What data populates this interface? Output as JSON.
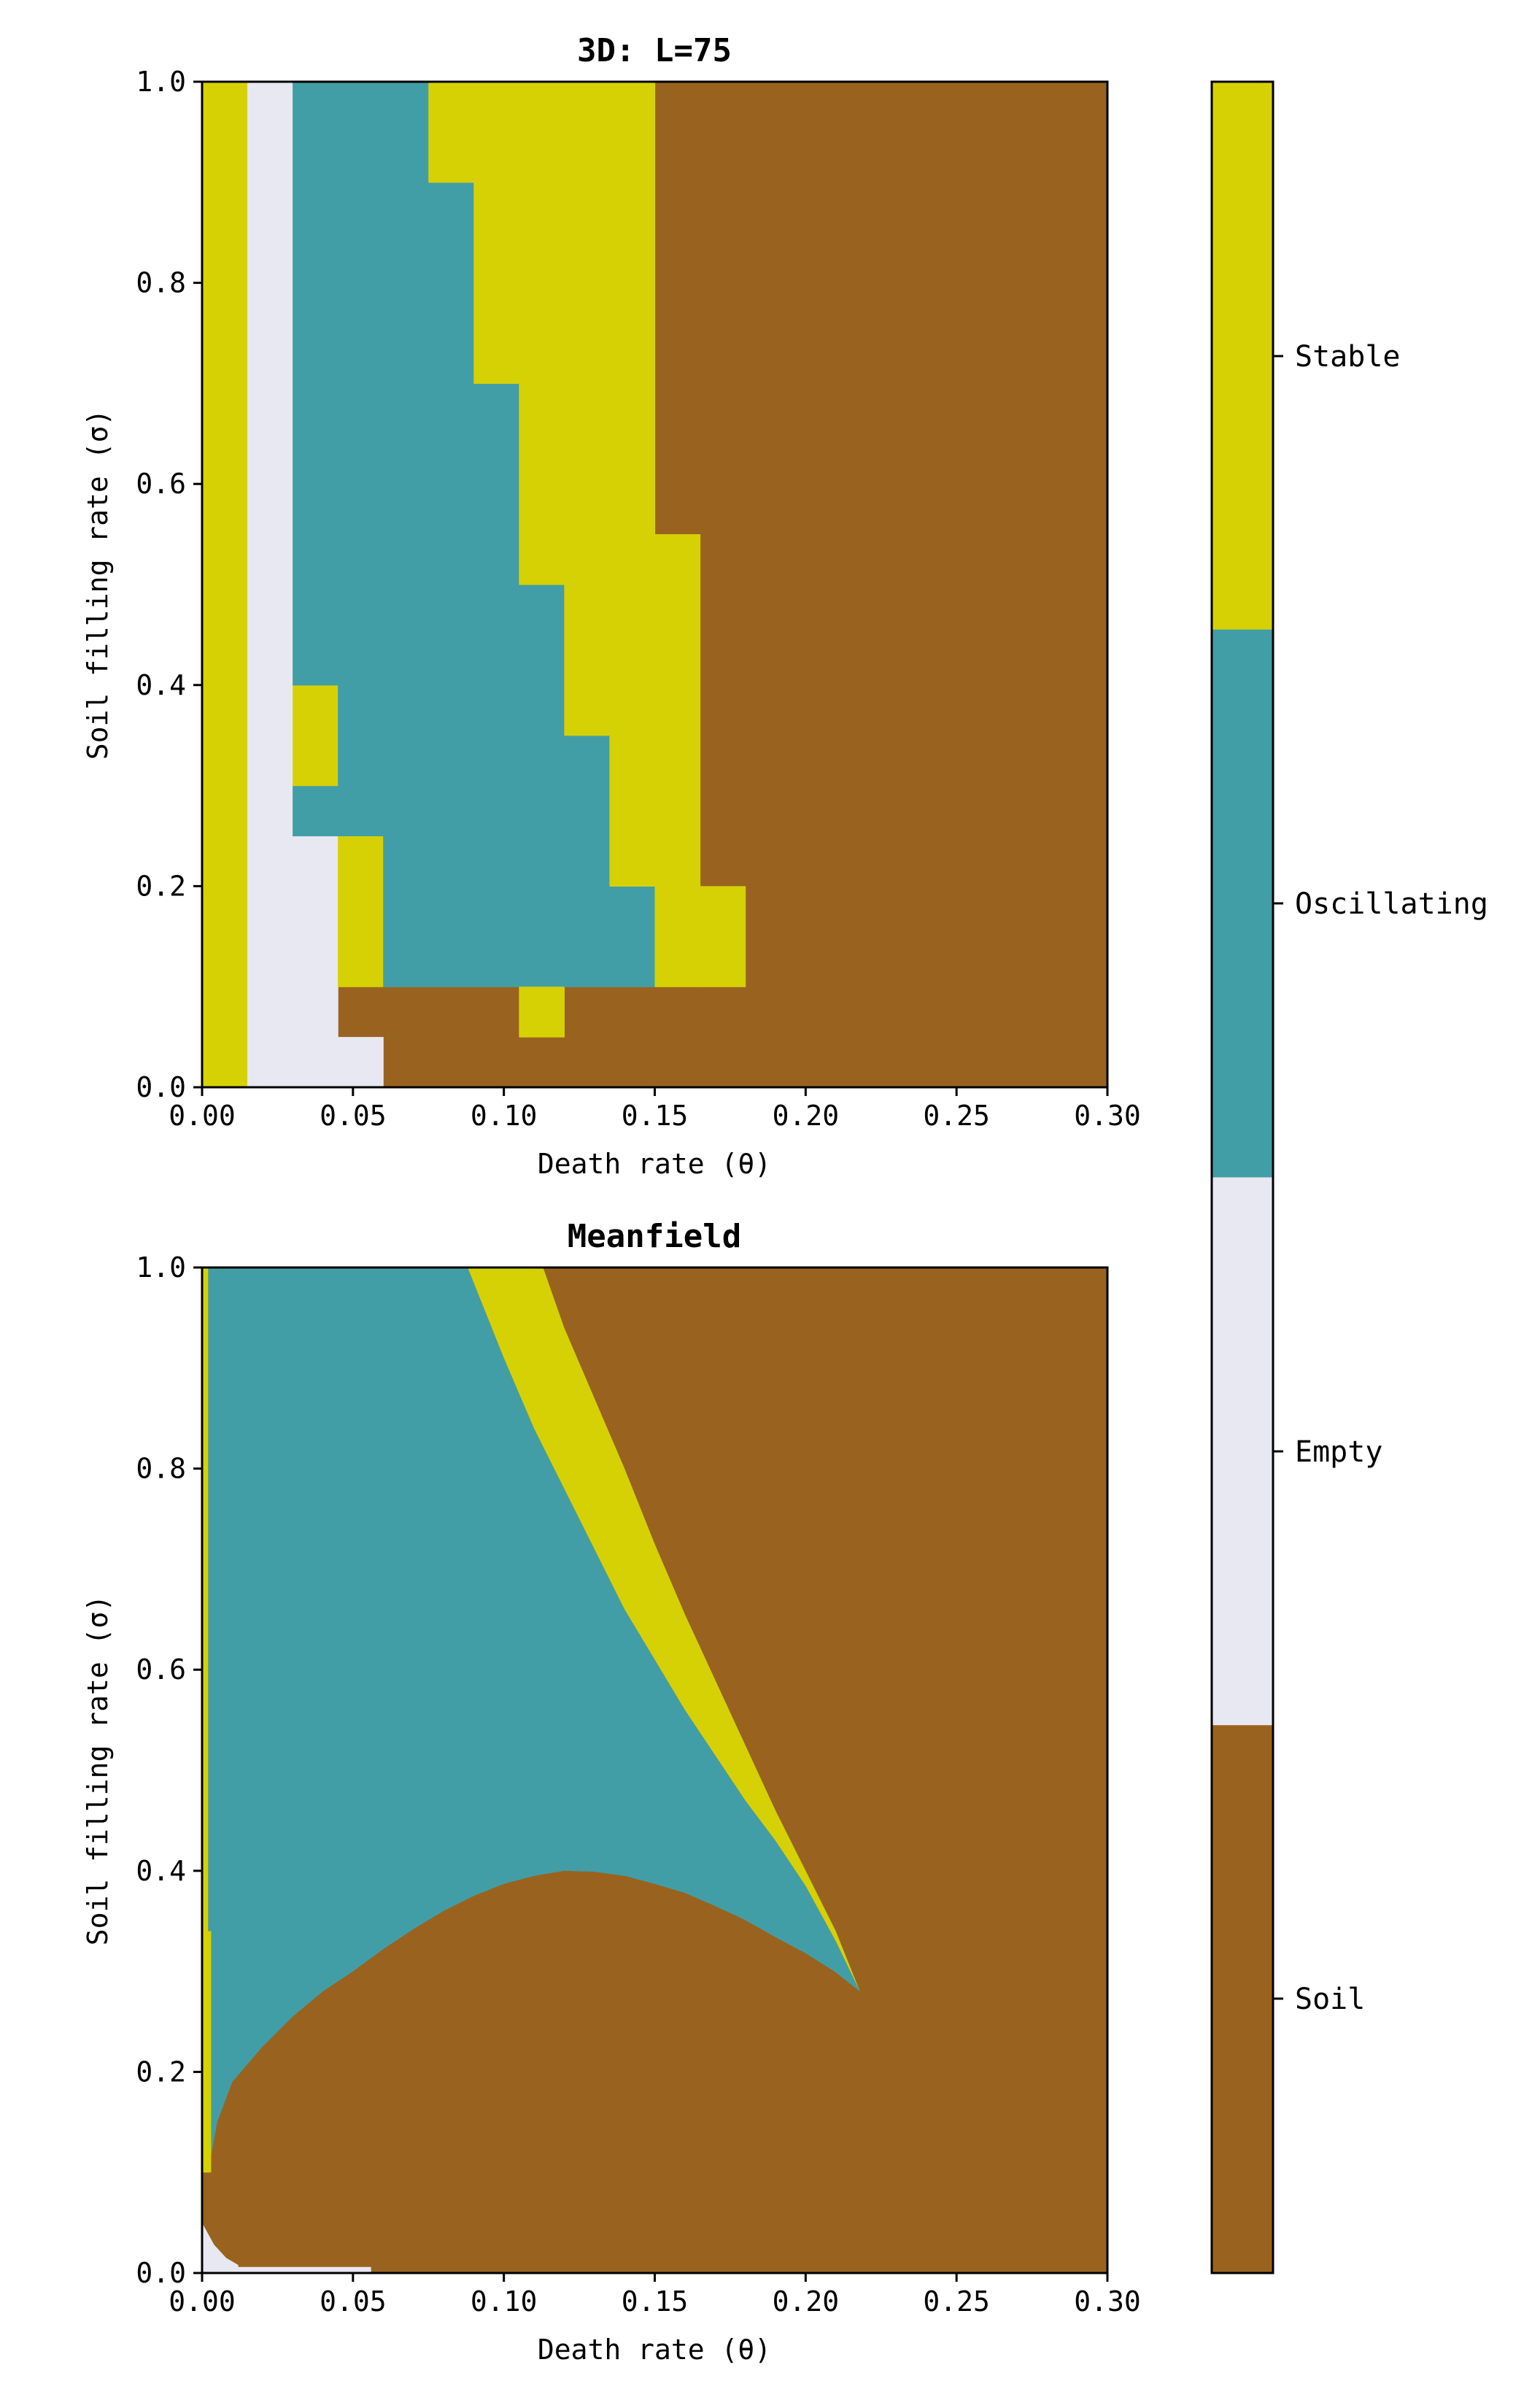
{
  "colors": {
    "soil": "#99631f",
    "empty": "#e8e8f2",
    "oscillating": "#429ea6",
    "stable": "#d6d105"
  },
  "colorbar": {
    "labels": [
      "Soil",
      "Empty",
      "Oscillating",
      "Stable"
    ]
  },
  "chart_data": [
    {
      "type": "heatmap",
      "title": "3D: L=75",
      "xlabel": "Death rate (θ)",
      "ylabel": "Soil filling rate (σ)",
      "xlim": [
        0.0,
        0.3
      ],
      "ylim": [
        0.0,
        1.0
      ],
      "xticks": [
        "0.00",
        "0.05",
        "0.10",
        "0.15",
        "0.20",
        "0.25",
        "0.30"
      ],
      "yticks": [
        "0.0",
        "0.2",
        "0.4",
        "0.6",
        "0.8",
        "1.0"
      ],
      "cell_width": 0.015,
      "cell_height": 0.05,
      "legend": [
        "Soil",
        "Empty",
        "Oscillating",
        "Stable"
      ],
      "regions": [
        {
          "state": "Soil",
          "theta_range": [
            0.0,
            0.3
          ],
          "sigma_range": [
            0.0,
            1.0
          ]
        },
        {
          "state": "Stable",
          "theta_range": [
            0.0,
            0.015
          ],
          "sigma_range": [
            0.0,
            1.0
          ]
        },
        {
          "state": "Empty",
          "theta_range": [
            0.015,
            0.03
          ],
          "sigma_range": [
            0.0,
            1.0
          ]
        },
        {
          "state": "Empty",
          "theta_range": [
            0.03,
            0.045
          ],
          "sigma_range": [
            0.0,
            0.25
          ]
        },
        {
          "state": "Empty",
          "theta_range": [
            0.045,
            0.06
          ],
          "sigma_range": [
            0.0,
            0.05
          ]
        },
        {
          "state": "Oscillating",
          "theta_range": [
            0.03,
            0.045
          ],
          "sigma_range": [
            0.25,
            0.3
          ]
        },
        {
          "state": "Stable",
          "theta_range": [
            0.03,
            0.045
          ],
          "sigma_range": [
            0.3,
            0.4
          ]
        },
        {
          "state": "Oscillating",
          "theta_range": [
            0.03,
            0.045
          ],
          "sigma_range": [
            0.4,
            1.0
          ]
        },
        {
          "state": "Stable",
          "theta_range": [
            0.045,
            0.06
          ],
          "sigma_range": [
            0.1,
            0.25
          ]
        },
        {
          "state": "Oscillating",
          "theta_range": [
            0.045,
            0.06
          ],
          "sigma_range": [
            0.25,
            1.0
          ]
        },
        {
          "state": "Oscillating",
          "theta_range": [
            0.06,
            0.075
          ],
          "sigma_range": [
            0.1,
            1.0
          ]
        },
        {
          "state": "Oscillating",
          "theta_range": [
            0.075,
            0.09
          ],
          "sigma_range": [
            0.1,
            0.9
          ]
        },
        {
          "state": "Stable",
          "theta_range": [
            0.075,
            0.09
          ],
          "sigma_range": [
            0.9,
            1.0
          ]
        },
        {
          "state": "Oscillating",
          "theta_range": [
            0.09,
            0.105
          ],
          "sigma_range": [
            0.1,
            0.7
          ]
        },
        {
          "state": "Stable",
          "theta_range": [
            0.09,
            0.105
          ],
          "sigma_range": [
            0.7,
            1.0
          ]
        },
        {
          "state": "Oscillating",
          "theta_range": [
            0.105,
            0.12
          ],
          "sigma_range": [
            0.1,
            0.5
          ]
        },
        {
          "state": "Stable",
          "theta_range": [
            0.105,
            0.12
          ],
          "sigma_range": [
            0.5,
            1.0
          ]
        },
        {
          "state": "Stable",
          "theta_range": [
            0.105,
            0.12
          ],
          "sigma_range": [
            0.05,
            0.1
          ]
        },
        {
          "state": "Oscillating",
          "theta_range": [
            0.12,
            0.135
          ],
          "sigma_range": [
            0.1,
            0.35
          ]
        },
        {
          "state": "Stable",
          "theta_range": [
            0.12,
            0.135
          ],
          "sigma_range": [
            0.35,
            1.0
          ]
        },
        {
          "state": "Oscillating",
          "theta_range": [
            0.135,
            0.15
          ],
          "sigma_range": [
            0.1,
            0.2
          ]
        },
        {
          "state": "Stable",
          "theta_range": [
            0.135,
            0.15
          ],
          "sigma_range": [
            0.2,
            1.0
          ]
        },
        {
          "state": "Stable",
          "theta_range": [
            0.15,
            0.165
          ],
          "sigma_range": [
            0.1,
            0.55
          ]
        },
        {
          "state": "Stable",
          "theta_range": [
            0.165,
            0.18
          ],
          "sigma_range": [
            0.1,
            0.2
          ]
        }
      ]
    },
    {
      "type": "heatmap",
      "title": "Meanfield",
      "xlabel": "Death rate (θ)",
      "ylabel": "Soil filling rate (σ)",
      "xlim": [
        0.0,
        0.3
      ],
      "ylim": [
        0.0,
        1.0
      ],
      "xticks": [
        "0.00",
        "0.05",
        "0.10",
        "0.15",
        "0.20",
        "0.25",
        "0.30"
      ],
      "yticks": [
        "0.0",
        "0.2",
        "0.4",
        "0.6",
        "0.8",
        "1.0"
      ],
      "legend": [
        "Soil",
        "Empty",
        "Oscillating",
        "Stable"
      ],
      "boundaries": {
        "soil_dome_upper": {
          "theta": [
            0.0,
            0.002,
            0.005,
            0.01,
            0.02,
            0.03,
            0.04,
            0.05,
            0.06,
            0.07,
            0.08,
            0.09,
            0.1,
            0.11,
            0.12,
            0.13,
            0.14,
            0.15,
            0.16,
            0.17,
            0.18,
            0.19,
            0.2,
            0.21,
            0.218
          ],
          "sigma": [
            0.03,
            0.1,
            0.15,
            0.19,
            0.225,
            0.255,
            0.28,
            0.3,
            0.322,
            0.342,
            0.36,
            0.375,
            0.387,
            0.395,
            0.4,
            0.399,
            0.395,
            0.387,
            0.378,
            0.365,
            0.351,
            0.334,
            0.318,
            0.299,
            0.28
          ]
        },
        "stable_band_left": {
          "theta": [
            0.088,
            0.1,
            0.11,
            0.12,
            0.13,
            0.14,
            0.15,
            0.16,
            0.17,
            0.18,
            0.19,
            0.2,
            0.21,
            0.218
          ],
          "sigma": [
            1.0,
            0.91,
            0.84,
            0.78,
            0.72,
            0.66,
            0.61,
            0.56,
            0.515,
            0.47,
            0.43,
            0.385,
            0.33,
            0.28
          ]
        },
        "stable_band_right": {
          "theta": [
            0.113,
            0.12,
            0.13,
            0.14,
            0.15,
            0.16,
            0.17,
            0.18,
            0.19,
            0.2,
            0.21,
            0.218
          ],
          "sigma": [
            1.0,
            0.94,
            0.87,
            0.8,
            0.725,
            0.655,
            0.59,
            0.525,
            0.46,
            0.4,
            0.34,
            0.28
          ]
        },
        "stable_left_column": {
          "theta_range": [
            0.0,
            0.002
          ],
          "sigma_range": [
            0.1,
            1.0
          ]
        },
        "stable_left_patch": {
          "theta_range": [
            0.0,
            0.003
          ],
          "sigma_range": [
            0.1,
            0.34
          ]
        },
        "empty_bottom_strip": {
          "theta_range": [
            0.0,
            0.056
          ],
          "sigma_range": [
            0.0,
            0.006
          ]
        },
        "empty_corner": {
          "theta": [
            0.0,
            0.004,
            0.008,
            0.012
          ],
          "sigma": [
            0.05,
            0.028,
            0.015,
            0.008
          ]
        }
      }
    }
  ]
}
